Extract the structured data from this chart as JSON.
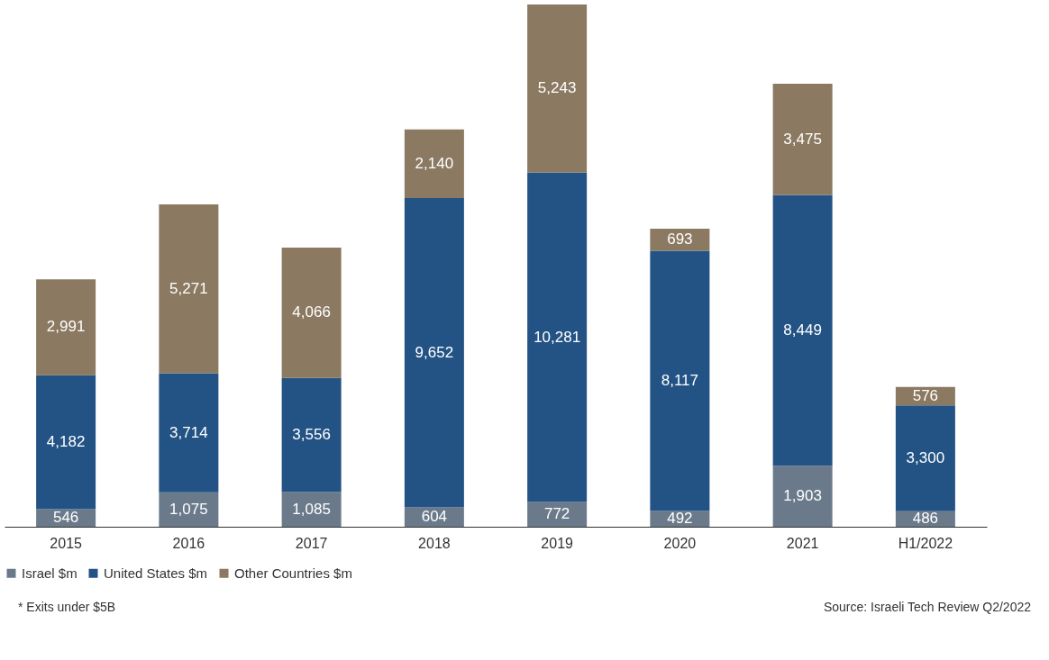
{
  "chart_data": {
    "type": "bar",
    "stacked": true,
    "legend": "bottom",
    "grid": false,
    "categories": [
      "2015",
      "2016",
      "2017",
      "2018",
      "2019",
      "2020",
      "2021",
      "H1/2022"
    ],
    "series": [
      {
        "name": "Israel $m",
        "color": "#6b7a8b",
        "values": [
          546,
          1075,
          1085,
          604,
          772,
          492,
          1903,
          486
        ],
        "value_labels": [
          "546",
          "1,075",
          "1,085",
          "604",
          "772",
          "492",
          "1,903",
          "486"
        ]
      },
      {
        "name": "United States $m",
        "color": "#235384",
        "values": [
          4182,
          3714,
          3556,
          9652,
          10281,
          8117,
          8449,
          3300
        ],
        "value_labels": [
          "4,182",
          "3,714",
          "3,556",
          "9,652",
          "10,281",
          "8,117",
          "8,449",
          "3,300"
        ]
      },
      {
        "name": "Other Countries $m",
        "color": "#8b7961",
        "values": [
          2991,
          5271,
          4066,
          2140,
          5243,
          693,
          3475,
          576
        ],
        "value_labels": [
          "2,991",
          "5,271",
          "4,066",
          "2,140",
          "5,243",
          "693",
          "3,475",
          "576"
        ]
      }
    ],
    "annotations": [
      "* Exits under $5B",
      "Source: Israeli Tech Review Q2/2022"
    ]
  }
}
